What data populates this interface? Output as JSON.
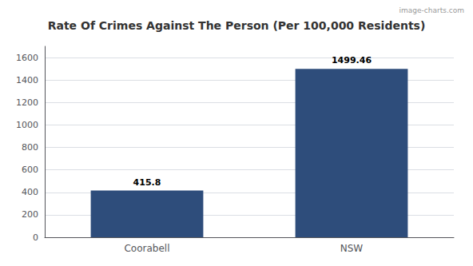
{
  "chart_data": {
    "type": "bar",
    "title": "Rate Of Crimes Against The Person (Per 100,000 Residents)",
    "categories": [
      "Coorabell",
      "NSW"
    ],
    "values": [
      415.8,
      1499.46
    ],
    "color": "#2e4d7b",
    "ylim": [
      0,
      1700
    ],
    "yticks": [
      0,
      200,
      400,
      600,
      800,
      1000,
      1200,
      1400,
      1600
    ],
    "grid": true,
    "data_labels": true,
    "annotations": [
      "image-charts.com"
    ]
  }
}
